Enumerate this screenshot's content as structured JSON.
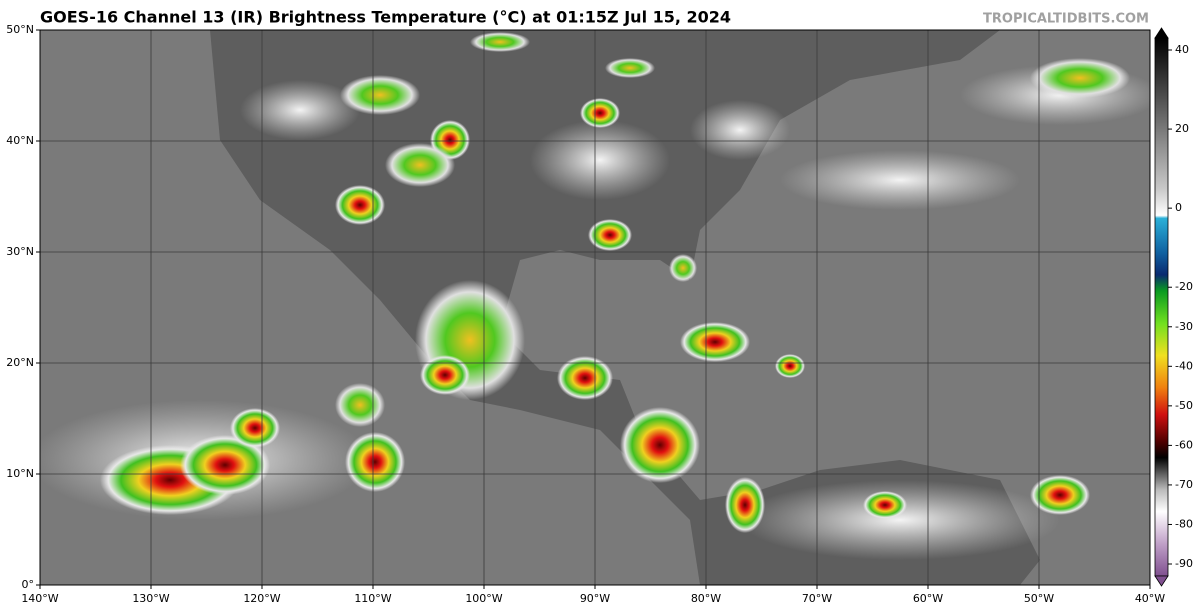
{
  "header": {
    "title": "GOES-16 Channel 13 (IR) Brightness Temperature (°C) at 01:15Z Jul 15, 2024",
    "credit": "TROPICALTIDBITS.COM"
  },
  "map": {
    "xlim": [
      -140,
      -40
    ],
    "ylim": [
      0,
      50
    ],
    "xticks": [
      {
        "value": -140,
        "label": "140°W"
      },
      {
        "value": -130,
        "label": "130°W"
      },
      {
        "value": -120,
        "label": "120°W"
      },
      {
        "value": -110,
        "label": "110°W"
      },
      {
        "value": -100,
        "label": "100°W"
      },
      {
        "value": -90,
        "label": "90°W"
      },
      {
        "value": -80,
        "label": "80°W"
      },
      {
        "value": -70,
        "label": "70°W"
      },
      {
        "value": -60,
        "label": "60°W"
      },
      {
        "value": -50,
        "label": "50°W"
      },
      {
        "value": -40,
        "label": "40°W"
      }
    ],
    "yticks": [
      {
        "value": 0,
        "label": "0°"
      },
      {
        "value": 10,
        "label": "10°N"
      },
      {
        "value": 20,
        "label": "20°N"
      },
      {
        "value": 30,
        "label": "30°N"
      },
      {
        "value": 40,
        "label": "40°N"
      },
      {
        "value": 50,
        "label": "50°N"
      }
    ],
    "grid": true
  },
  "colorbar": {
    "lim": [
      -90,
      40
    ],
    "ticks": [
      40,
      20,
      0,
      -20,
      -30,
      -40,
      -50,
      -60,
      -70,
      -80,
      -90
    ]
  }
}
